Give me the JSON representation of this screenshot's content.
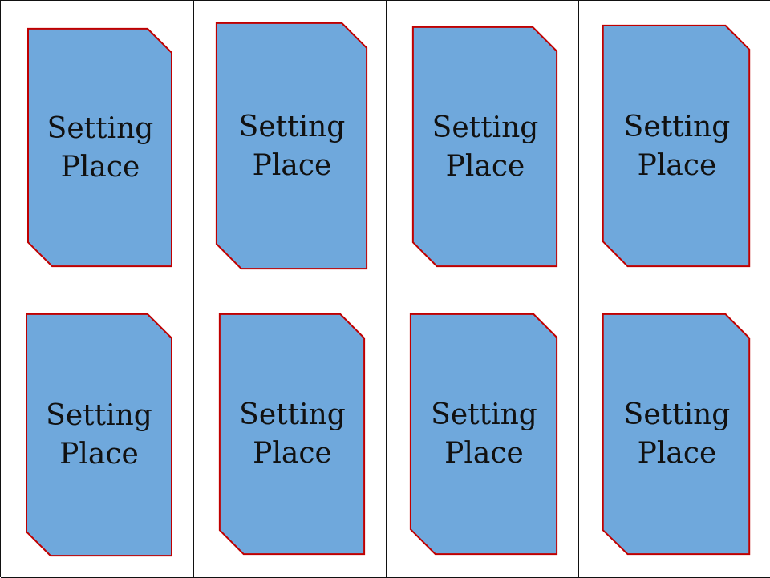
{
  "theme": {
    "card_fill": "#6fa8dc",
    "card_border": "#c00000",
    "grid_line": "#111111",
    "background": "#ffffff",
    "text_color": "#111111"
  },
  "cards": [
    {
      "line1": "Setting",
      "line2": "Place"
    },
    {
      "line1": "Setting",
      "line2": "Place"
    },
    {
      "line1": "Setting",
      "line2": "Place"
    },
    {
      "line1": "Setting",
      "line2": "Place"
    },
    {
      "line1": "Setting",
      "line2": "Place"
    },
    {
      "line1": "Setting",
      "line2": "Place"
    },
    {
      "line1": "Setting",
      "line2": "Place"
    },
    {
      "line1": "Setting",
      "line2": "Place"
    }
  ]
}
